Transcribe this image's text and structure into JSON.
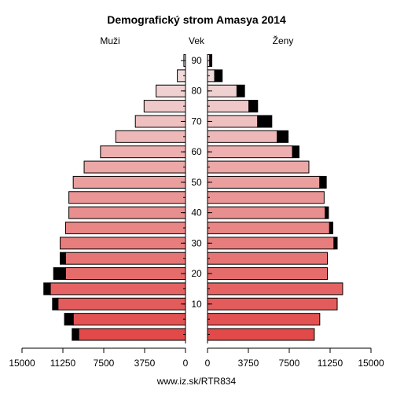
{
  "chart_data": {
    "type": "bar",
    "title": "Demografický strom Amasya 2014",
    "left_label": "Muži",
    "center_label": "Vek",
    "right_label": "Ženy",
    "source": "www.iz.sk/RTR834",
    "age_ticks": [
      "10",
      "20",
      "30",
      "40",
      "50",
      "60",
      "70",
      "80",
      "90"
    ],
    "x_ticks_left": [
      "15000",
      "11250",
      "7500",
      "3750",
      "0"
    ],
    "x_ticks_right": [
      "0",
      "3750",
      "7500",
      "11250",
      "15000"
    ],
    "xlim": [
      0,
      15000
    ],
    "age_groups": [
      "0-4",
      "5-9",
      "10-14",
      "15-19",
      "20-24",
      "25-29",
      "30-34",
      "35-39",
      "40-44",
      "45-49",
      "50-54",
      "55-59",
      "60-64",
      "65-69",
      "70-74",
      "75-79",
      "80-84",
      "85-89",
      "90+"
    ],
    "series": [
      {
        "name": "Muži",
        "values": [
          9800,
          10300,
          11700,
          12400,
          11000,
          11000,
          11500,
          11000,
          10700,
          10700,
          10300,
          9300,
          7800,
          6400,
          4600,
          3800,
          2700,
          750,
          150
        ]
      },
      {
        "name": "Muži nadbytok",
        "values": [
          600,
          800,
          500,
          600,
          1100,
          500,
          0,
          0,
          0,
          0,
          0,
          0,
          0,
          0,
          0,
          0,
          0,
          0,
          0
        ]
      },
      {
        "name": "Ženy",
        "values": [
          9800,
          10300,
          11900,
          12400,
          11000,
          11000,
          11600,
          11200,
          10800,
          10700,
          10300,
          9300,
          7800,
          6400,
          4600,
          3800,
          2700,
          650,
          200
        ]
      },
      {
        "name": "Ženy nadbytok",
        "values": [
          0,
          0,
          0,
          0,
          0,
          0,
          300,
          300,
          300,
          0,
          600,
          0,
          600,
          1000,
          1300,
          800,
          700,
          700,
          200
        ]
      }
    ],
    "colors": {
      "young": "#e24a4a",
      "old": "#f2e2e2"
    }
  }
}
